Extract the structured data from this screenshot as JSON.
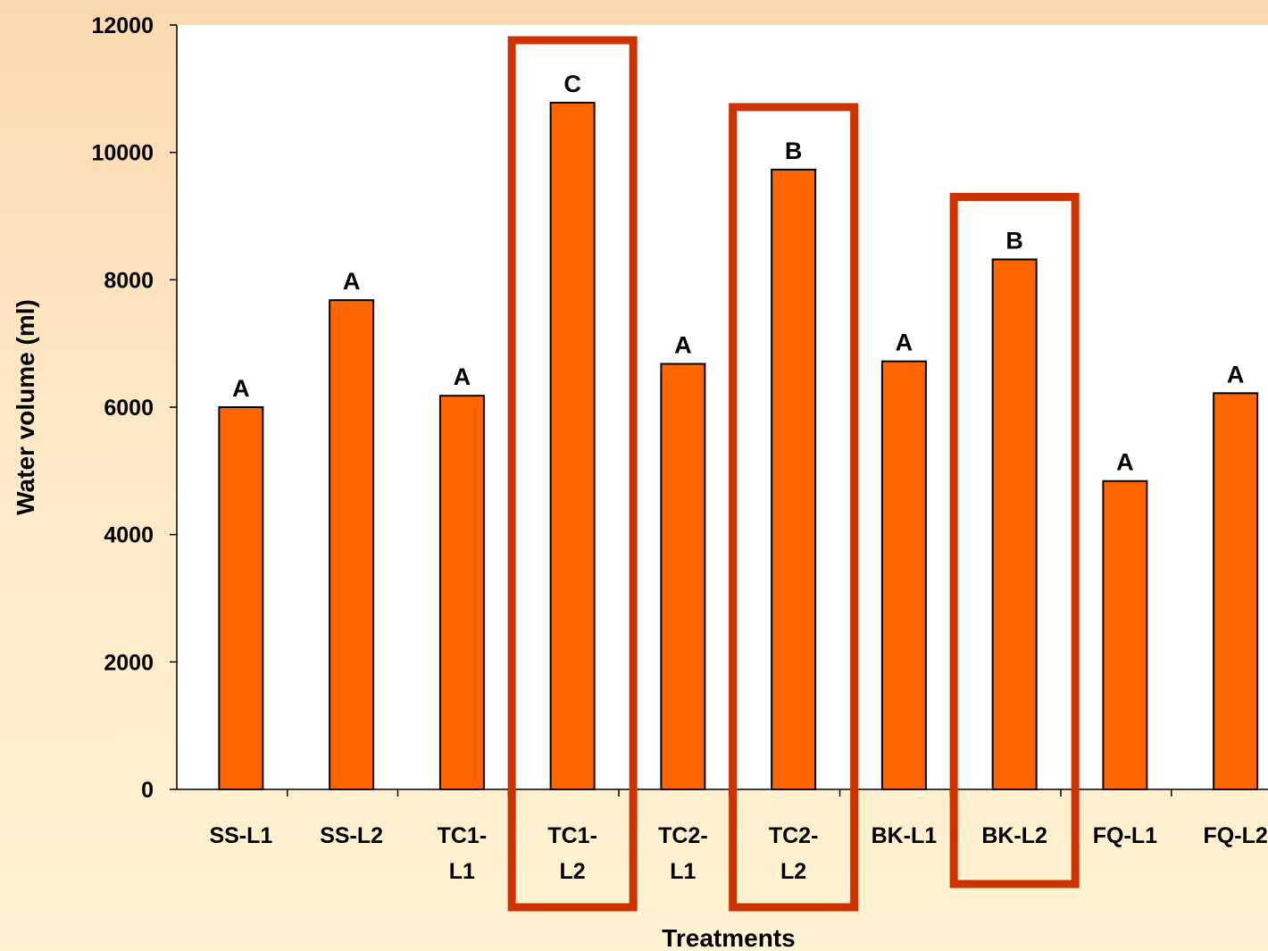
{
  "chart_data": {
    "type": "bar",
    "title": "",
    "xlabel": "Treatments",
    "ylabel": "Water volume (ml)",
    "ylim": [
      0,
      12000
    ],
    "yticks": [
      0,
      2000,
      4000,
      6000,
      8000,
      10000,
      12000
    ],
    "grid": false,
    "categories": [
      [
        "SS-L1"
      ],
      [
        "SS-L2"
      ],
      [
        "TC1-",
        "L1"
      ],
      [
        "TC1-",
        "L2"
      ],
      [
        "TC2-",
        "L1"
      ],
      [
        "TC2-",
        "L2"
      ],
      [
        "BK-L1"
      ],
      [
        "BK-L2"
      ],
      [
        "FQ-L1"
      ],
      [
        "FQ-L2"
      ]
    ],
    "values": [
      6000,
      7680,
      6180,
      10780,
      6680,
      9730,
      6720,
      8320,
      4840,
      6220
    ],
    "data_labels": [
      "A",
      "A",
      "A",
      "C",
      "A",
      "B",
      "A",
      "B",
      "A",
      "A"
    ],
    "highlighted_categories": [
      "TC1-L2",
      "TC2-L2",
      "BK-L2"
    ],
    "colors": {
      "bar_fill": "#ff6600",
      "bar_stroke": "#000000",
      "highlight_box": "#cc3300",
      "plot_background": "#ffffff"
    }
  }
}
